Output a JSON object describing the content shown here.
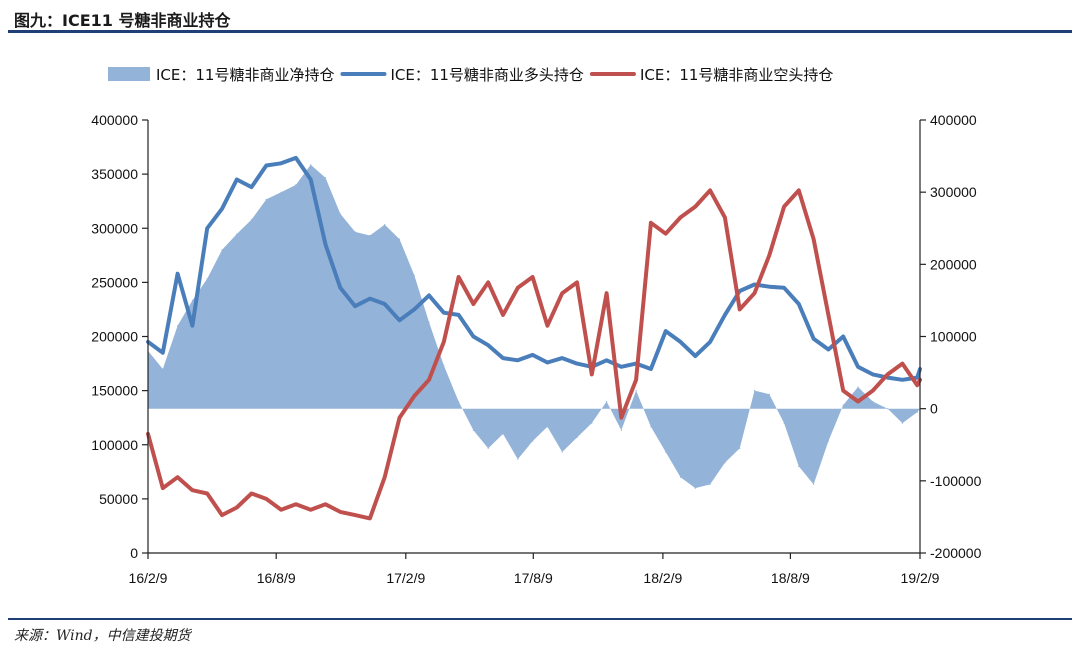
{
  "figure": {
    "title": "图九：ICE11 号糖非商业持仓",
    "source": "来源：Wind，中信建投期货"
  },
  "chart_data": {
    "type": "line",
    "x_tick_labels": [
      "16/2/9",
      "16/8/9",
      "17/2/9",
      "17/8/9",
      "18/2/9",
      "18/8/9",
      "19/2/9"
    ],
    "y_left": {
      "ticks": [
        0,
        50000,
        100000,
        150000,
        200000,
        250000,
        300000,
        350000,
        400000
      ],
      "range": [
        0,
        400000
      ]
    },
    "y_right": {
      "ticks": [
        -200000,
        -100000,
        0,
        100000,
        200000,
        300000,
        400000
      ],
      "range": [
        -200000,
        400000
      ]
    },
    "grid": false,
    "legend_position": "top",
    "series": [
      {
        "name": "ICE：11号糖非商业净持仓",
        "kind": "area",
        "axis": "right",
        "color": "#94b3d9",
        "x": [
          "16/2/9",
          "16/3/1",
          "16/3/22",
          "16/4/12",
          "16/5/3",
          "16/5/24",
          "16/6/14",
          "16/7/5",
          "16/7/26",
          "16/8/16",
          "16/9/6",
          "16/9/27",
          "16/10/18",
          "16/11/8",
          "16/11/29",
          "16/12/20",
          "17/1/10",
          "17/1/31",
          "17/2/21",
          "17/3/14",
          "17/4/4",
          "17/4/25",
          "17/5/16",
          "17/6/6",
          "17/6/27",
          "17/7/18",
          "17/8/8",
          "17/8/29",
          "17/9/19",
          "17/10/10",
          "17/10/31",
          "17/11/21",
          "17/12/12",
          "18/1/2",
          "18/1/23",
          "18/2/13",
          "18/3/6",
          "18/3/27",
          "18/4/17",
          "18/5/8",
          "18/5/29",
          "18/6/19",
          "18/7/10",
          "18/7/31",
          "18/8/21",
          "18/9/11",
          "18/10/2",
          "18/10/23",
          "18/11/13",
          "18/12/4",
          "18/12/25",
          "19/1/15",
          "19/2/5",
          "19/2/9"
        ],
        "values": [
          80000,
          55000,
          115000,
          150000,
          180000,
          220000,
          242000,
          262000,
          290000,
          300000,
          310000,
          338000,
          320000,
          270000,
          245000,
          240000,
          255000,
          235000,
          185000,
          120000,
          60000,
          10000,
          -30000,
          -55000,
          -35000,
          -70000,
          -45000,
          -25000,
          -60000,
          -40000,
          -20000,
          10000,
          -30000,
          25000,
          -25000,
          -60000,
          -95000,
          -110000,
          -105000,
          -75000,
          -55000,
          25000,
          20000,
          -20000,
          -80000,
          -105000,
          -45000,
          5000,
          30000,
          10000,
          0,
          -20000,
          -5000,
          0
        ]
      },
      {
        "name": "ICE：11号糖非商业多头持仓",
        "kind": "line",
        "axis": "left",
        "color": "#4a7ebb",
        "x": [
          "16/2/9",
          "16/3/1",
          "16/3/22",
          "16/4/12",
          "16/5/3",
          "16/5/24",
          "16/6/14",
          "16/7/5",
          "16/7/26",
          "16/8/16",
          "16/9/6",
          "16/9/27",
          "16/10/18",
          "16/11/8",
          "16/11/29",
          "16/12/20",
          "17/1/10",
          "17/1/31",
          "17/2/21",
          "17/3/14",
          "17/4/4",
          "17/4/25",
          "17/5/16",
          "17/6/6",
          "17/6/27",
          "17/7/18",
          "17/8/8",
          "17/8/29",
          "17/9/19",
          "17/10/10",
          "17/10/31",
          "17/11/21",
          "17/12/12",
          "18/1/2",
          "18/1/23",
          "18/2/13",
          "18/3/6",
          "18/3/27",
          "18/4/17",
          "18/5/8",
          "18/5/29",
          "18/6/19",
          "18/7/10",
          "18/7/31",
          "18/8/21",
          "18/9/11",
          "18/10/2",
          "18/10/23",
          "18/11/13",
          "18/12/4",
          "18/12/25",
          "19/1/15",
          "19/2/5",
          "19/2/9"
        ],
        "values": [
          195000,
          185000,
          258000,
          210000,
          300000,
          318000,
          345000,
          338000,
          358000,
          360000,
          365000,
          345000,
          285000,
          245000,
          228000,
          235000,
          230000,
          215000,
          225000,
          238000,
          222000,
          220000,
          200000,
          192000,
          180000,
          178000,
          183000,
          176000,
          180000,
          175000,
          172000,
          178000,
          172000,
          175000,
          170000,
          205000,
          195000,
          182000,
          195000,
          220000,
          242000,
          248000,
          246000,
          245000,
          230000,
          198000,
          188000,
          200000,
          172000,
          165000,
          162000,
          160000,
          162000,
          170000
        ]
      },
      {
        "name": "ICE：11号糖非商业空头持仓",
        "kind": "line",
        "axis": "left",
        "color": "#c0504d",
        "x": [
          "16/2/9",
          "16/3/1",
          "16/3/22",
          "16/4/12",
          "16/5/3",
          "16/5/24",
          "16/6/14",
          "16/7/5",
          "16/7/26",
          "16/8/16",
          "16/9/6",
          "16/9/27",
          "16/10/18",
          "16/11/8",
          "16/11/29",
          "16/12/20",
          "17/1/10",
          "17/1/31",
          "17/2/21",
          "17/3/14",
          "17/4/4",
          "17/4/25",
          "17/5/16",
          "17/6/6",
          "17/6/27",
          "17/7/18",
          "17/8/8",
          "17/8/29",
          "17/9/19",
          "17/10/10",
          "17/10/31",
          "17/11/21",
          "17/12/12",
          "18/1/2",
          "18/1/23",
          "18/2/13",
          "18/3/6",
          "18/3/27",
          "18/4/17",
          "18/5/8",
          "18/5/29",
          "18/6/19",
          "18/7/10",
          "18/7/31",
          "18/8/21",
          "18/9/11",
          "18/10/2",
          "18/10/23",
          "18/11/13",
          "18/12/4",
          "18/12/25",
          "19/1/15",
          "19/2/5",
          "19/2/9"
        ],
        "values": [
          110000,
          60000,
          70000,
          58000,
          55000,
          35000,
          42000,
          55000,
          50000,
          40000,
          45000,
          40000,
          45000,
          38000,
          35000,
          32000,
          70000,
          125000,
          145000,
          160000,
          195000,
          255000,
          230000,
          250000,
          220000,
          245000,
          255000,
          210000,
          240000,
          250000,
          165000,
          240000,
          125000,
          160000,
          305000,
          295000,
          310000,
          320000,
          335000,
          310000,
          225000,
          240000,
          275000,
          320000,
          335000,
          290000,
          220000,
          150000,
          140000,
          150000,
          165000,
          175000,
          155000,
          160000
        ]
      }
    ]
  }
}
